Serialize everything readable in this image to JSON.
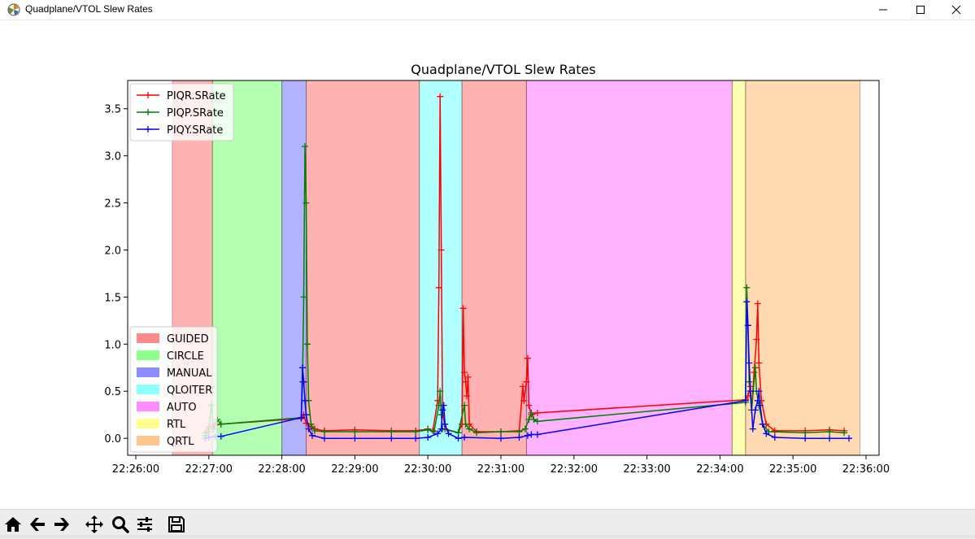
{
  "window": {
    "title": "Quadplane/VTOL Slew Rates",
    "icon": "matplotlib-icon",
    "controls": [
      "minimize-icon",
      "maximize-icon",
      "close-icon"
    ]
  },
  "toolbar": {
    "buttons": [
      {
        "name": "home-button",
        "icon": "home-icon"
      },
      {
        "name": "back-button",
        "icon": "arrow-left-icon"
      },
      {
        "name": "forward-button",
        "icon": "arrow-right-icon"
      },
      {
        "name": "pan-button",
        "icon": "move-icon"
      },
      {
        "name": "zoom-button",
        "icon": "magnifier-icon"
      },
      {
        "name": "configure-subplots-button",
        "icon": "sliders-icon"
      },
      {
        "name": "save-button",
        "icon": "floppy-disk-icon"
      }
    ],
    "status": ""
  },
  "chart_data": {
    "type": "line",
    "title": "Quadplane/VTOL Slew Rates",
    "xlabel": "",
    "ylabel": "",
    "x_unit": "time",
    "xlim": [
      "22:26:00",
      "22:36:00"
    ],
    "ylim": [
      -0.18,
      3.8
    ],
    "x_ticks": [
      "22:26:00",
      "22:27:00",
      "22:28:00",
      "22:29:00",
      "22:30:00",
      "22:31:00",
      "22:32:00",
      "22:33:00",
      "22:34:00",
      "22:35:00",
      "22:36:00"
    ],
    "y_ticks": [
      "0.0",
      "0.5",
      "1.0",
      "1.5",
      "2.0",
      "2.5",
      "3.0",
      "3.5"
    ],
    "grid": false,
    "legend_series_placement": "upper-left",
    "legend_modes_placement": "lower-left",
    "modes": [
      {
        "name": "GUIDED",
        "color": "#ff0000"
      },
      {
        "name": "CIRCLE",
        "color": "#00ff00"
      },
      {
        "name": "MANUAL",
        "color": "#0000ff"
      },
      {
        "name": "QLOITER",
        "color": "#00ffff"
      },
      {
        "name": "AUTO",
        "color": "#ff00ff"
      },
      {
        "name": "RTL",
        "color": "#ffff00"
      },
      {
        "name": "QRTL",
        "color": "#ff8000"
      }
    ],
    "mode_spans": [
      {
        "mode": "GUIDED",
        "start": "22:26:30",
        "end": "22:27:03"
      },
      {
        "mode": "CIRCLE",
        "start": "22:27:03",
        "end": "22:28:00"
      },
      {
        "mode": "MANUAL",
        "start": "22:28:00",
        "end": "22:28:20"
      },
      {
        "mode": "GUIDED",
        "start": "22:28:20",
        "end": "22:29:53"
      },
      {
        "mode": "QLOITER",
        "start": "22:29:53",
        "end": "22:30:28"
      },
      {
        "mode": "GUIDED",
        "start": "22:30:28",
        "end": "22:31:21"
      },
      {
        "mode": "AUTO",
        "start": "22:31:21",
        "end": "22:34:10"
      },
      {
        "mode": "RTL",
        "start": "22:34:10",
        "end": "22:34:21"
      },
      {
        "mode": "QRTL",
        "start": "22:34:21",
        "end": "22:35:55"
      }
    ],
    "series": [
      {
        "name": "PIQR.SRate",
        "color": "#ff0000",
        "points": [
          [
            "22:26:57",
            0.06
          ],
          [
            "22:27:00",
            0.12
          ],
          [
            "22:27:05",
            0.14
          ],
          [
            "22:27:10",
            0.15
          ],
          [
            "22:28:16",
            0.21
          ],
          [
            "22:28:18",
            0.25
          ],
          [
            "22:28:20",
            0.16
          ],
          [
            "22:28:24",
            0.12
          ],
          [
            "22:28:27",
            0.1
          ],
          [
            "22:28:35",
            0.08
          ],
          [
            "22:29:00",
            0.09
          ],
          [
            "22:29:30",
            0.08
          ],
          [
            "22:29:50",
            0.08
          ],
          [
            "22:30:00",
            0.1
          ],
          [
            "22:30:04",
            0.08
          ],
          [
            "22:30:08",
            0.4
          ],
          [
            "22:30:09",
            1.6
          ],
          [
            "22:30:10",
            3.63
          ],
          [
            "22:30:11",
            2.0
          ],
          [
            "22:30:12",
            0.3
          ],
          [
            "22:30:14",
            0.1
          ],
          [
            "22:30:25",
            0.06
          ],
          [
            "22:30:28",
            0.15
          ],
          [
            "22:30:29",
            1.38
          ],
          [
            "22:30:30",
            0.7
          ],
          [
            "22:30:31",
            0.6
          ],
          [
            "22:30:32",
            0.45
          ],
          [
            "22:30:33",
            0.65
          ],
          [
            "22:30:34",
            0.15
          ],
          [
            "22:30:40",
            0.07
          ],
          [
            "22:31:00",
            0.07
          ],
          [
            "22:31:15",
            0.08
          ],
          [
            "22:31:18",
            0.55
          ],
          [
            "22:31:19",
            0.4
          ],
          [
            "22:31:21",
            0.6
          ],
          [
            "22:31:22",
            0.85
          ],
          [
            "22:31:23",
            0.35
          ],
          [
            "22:31:25",
            0.25
          ],
          [
            "22:31:30",
            0.27
          ],
          [
            "22:34:21",
            0.41
          ],
          [
            "22:34:23",
            0.45
          ],
          [
            "22:34:25",
            0.55
          ],
          [
            "22:34:26",
            0.3
          ],
          [
            "22:34:28",
            0.7
          ],
          [
            "22:34:30",
            1.05
          ],
          [
            "22:34:31",
            1.43
          ],
          [
            "22:34:32",
            0.8
          ],
          [
            "22:34:34",
            0.4
          ],
          [
            "22:34:38",
            0.15
          ],
          [
            "22:34:45",
            0.08
          ],
          [
            "22:35:10",
            0.08
          ],
          [
            "22:35:30",
            0.09
          ],
          [
            "22:35:42",
            0.08
          ]
        ]
      },
      {
        "name": "PIQP.SRate",
        "color": "#008000",
        "points": [
          [
            "22:26:57",
            0.03
          ],
          [
            "22:27:00",
            0.07
          ],
          [
            "22:27:02",
            0.35
          ],
          [
            "22:27:04",
            0.1
          ],
          [
            "22:27:07",
            0.2
          ],
          [
            "22:27:10",
            0.15
          ],
          [
            "22:28:16",
            0.22
          ],
          [
            "22:28:17",
            0.6
          ],
          [
            "22:28:18",
            1.5
          ],
          [
            "22:28:19",
            3.1
          ],
          [
            "22:28:20",
            2.5
          ],
          [
            "22:28:21",
            1.0
          ],
          [
            "22:28:22",
            0.4
          ],
          [
            "22:28:24",
            0.15
          ],
          [
            "22:28:27",
            0.08
          ],
          [
            "22:28:35",
            0.07
          ],
          [
            "22:29:00",
            0.07
          ],
          [
            "22:29:30",
            0.07
          ],
          [
            "22:29:50",
            0.07
          ],
          [
            "22:30:00",
            0.09
          ],
          [
            "22:30:05",
            0.07
          ],
          [
            "22:30:09",
            0.35
          ],
          [
            "22:30:10",
            0.5
          ],
          [
            "22:30:11",
            0.25
          ],
          [
            "22:30:12",
            0.1
          ],
          [
            "22:30:25",
            0.06
          ],
          [
            "22:30:30",
            0.35
          ],
          [
            "22:30:31",
            0.15
          ],
          [
            "22:30:34",
            0.1
          ],
          [
            "22:30:40",
            0.06
          ],
          [
            "22:31:00",
            0.07
          ],
          [
            "22:31:15",
            0.07
          ],
          [
            "22:31:20",
            0.1
          ],
          [
            "22:31:23",
            0.2
          ],
          [
            "22:31:25",
            0.27
          ],
          [
            "22:31:27",
            0.2
          ],
          [
            "22:31:30",
            0.18
          ],
          [
            "22:34:21",
            0.38
          ],
          [
            "22:34:22",
            1.6
          ],
          [
            "22:34:23",
            1.2
          ],
          [
            "22:34:24",
            0.6
          ],
          [
            "22:34:26",
            0.3
          ],
          [
            "22:34:29",
            0.75
          ],
          [
            "22:34:30",
            0.5
          ],
          [
            "22:34:32",
            0.35
          ],
          [
            "22:34:35",
            0.15
          ],
          [
            "22:34:40",
            0.07
          ],
          [
            "22:35:10",
            0.06
          ],
          [
            "22:35:30",
            0.07
          ],
          [
            "22:35:42",
            0.06
          ]
        ]
      },
      {
        "name": "PIQY.SRate",
        "color": "#0000ff",
        "points": [
          [
            "22:26:57",
            0.0
          ],
          [
            "22:27:00",
            0.01
          ],
          [
            "22:27:05",
            0.02
          ],
          [
            "22:27:10",
            0.02
          ],
          [
            "22:28:16",
            0.22
          ],
          [
            "22:28:17",
            0.75
          ],
          [
            "22:28:18",
            0.6
          ],
          [
            "22:28:19",
            0.4
          ],
          [
            "22:28:20",
            0.25
          ],
          [
            "22:28:22",
            0.1
          ],
          [
            "22:28:25",
            0.03
          ],
          [
            "22:28:35",
            0.0
          ],
          [
            "22:29:00",
            0.0
          ],
          [
            "22:29:30",
            0.0
          ],
          [
            "22:29:50",
            0.0
          ],
          [
            "22:30:00",
            0.01
          ],
          [
            "22:30:08",
            0.05
          ],
          [
            "22:30:11",
            0.1
          ],
          [
            "22:30:12",
            0.3
          ],
          [
            "22:30:13",
            0.35
          ],
          [
            "22:30:14",
            0.15
          ],
          [
            "22:30:17",
            0.05
          ],
          [
            "22:30:25",
            0.0
          ],
          [
            "22:30:30",
            0.01
          ],
          [
            "22:31:00",
            0.0
          ],
          [
            "22:31:15",
            0.01
          ],
          [
            "22:31:22",
            0.03
          ],
          [
            "22:31:25",
            0.04
          ],
          [
            "22:31:30",
            0.04
          ],
          [
            "22:34:21",
            0.4
          ],
          [
            "22:34:22",
            1.45
          ],
          [
            "22:34:23",
            1.2
          ],
          [
            "22:34:24",
            0.8
          ],
          [
            "22:34:25",
            0.5
          ],
          [
            "22:34:27",
            0.1
          ],
          [
            "22:34:29",
            0.3
          ],
          [
            "22:34:31",
            0.4
          ],
          [
            "22:34:32",
            0.5
          ],
          [
            "22:34:33",
            0.35
          ],
          [
            "22:34:35",
            0.15
          ],
          [
            "22:34:38",
            0.05
          ],
          [
            "22:34:45",
            0.01
          ],
          [
            "22:35:10",
            0.0
          ],
          [
            "22:35:30",
            0.0
          ],
          [
            "22:35:46",
            0.0
          ]
        ]
      }
    ]
  }
}
